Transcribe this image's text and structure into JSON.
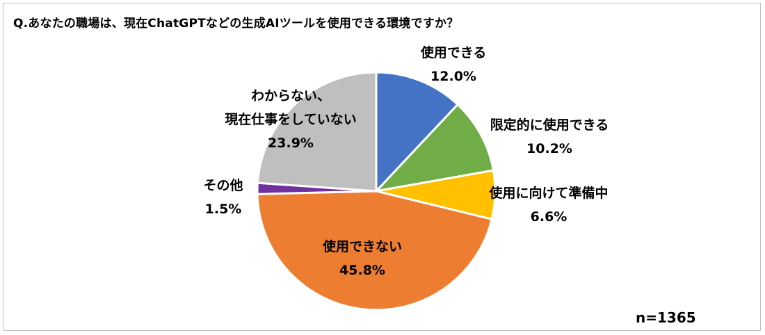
{
  "title": "Q.あなたの職場は、現在ChatGPTなどの生成AIツールを使用できる環境ですか？",
  "n_label": "n=1365",
  "chart_data": {
    "type": "pie",
    "start_angle_deg": 0,
    "direction": "clockwise",
    "slices": [
      {
        "label": "使用できる",
        "value": 12.0,
        "display": "12.0%",
        "color": "#4472c4"
      },
      {
        "label": "限定的に使用できる",
        "value": 10.2,
        "display": "10.2%",
        "color": "#70ad47"
      },
      {
        "label": "使用に向けて準備中",
        "value": 6.6,
        "display": "6.6%",
        "color": "#ffc000"
      },
      {
        "label": "使用できない",
        "value": 45.8,
        "display": "45.8%",
        "color": "#ed7d31"
      },
      {
        "label": "その他",
        "value": 1.5,
        "display": "1.5%",
        "color": "#7030a0"
      },
      {
        "label": "わからない、現在仕事をしていない",
        "label_lines": [
          "わからない、",
          "現在仕事をしていない"
        ],
        "value": 23.9,
        "display": "23.9%",
        "color": "#bfbfbf"
      }
    ]
  }
}
